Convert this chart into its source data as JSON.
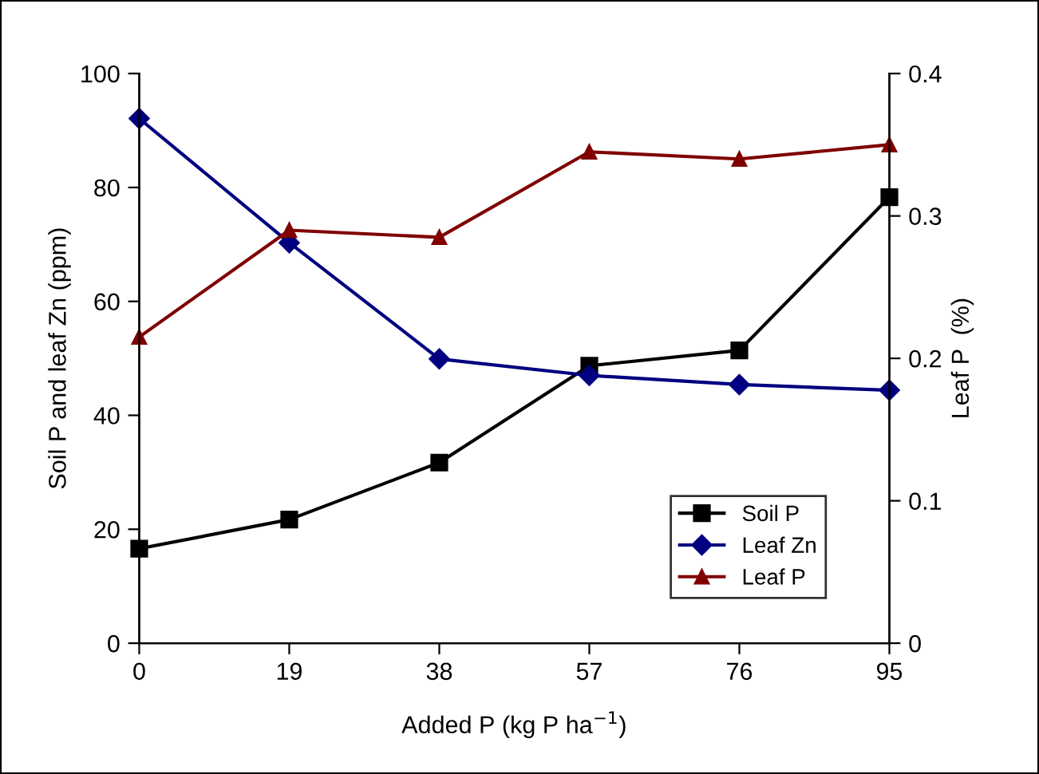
{
  "chart_data": {
    "type": "line",
    "xlabel": "Added P (kg P ha$^{−1}$)",
    "ylabel": "Soil P and leaf Zn (ppm)",
    "y2label": "Leaf P  (%)",
    "categories": [
      "0",
      "19",
      "38",
      "57",
      "76",
      "95"
    ],
    "series": [
      {
        "name": "Soil P",
        "color": "#000000",
        "marker": "square",
        "values": [
          16.6,
          21.7,
          31.7,
          48.7,
          51.4,
          78.3
        ]
      },
      {
        "name": "Leaf Zn",
        "color": "#000080",
        "marker": "diamond",
        "values": [
          92.1,
          70.3,
          49.9,
          47.0,
          45.4,
          44.4
        ]
      },
      {
        "name": "Leaf P",
        "color": "#800000",
        "marker": "triangle",
        "axis": "y2",
        "values": [
          0.215,
          0.29,
          0.285,
          0.345,
          0.34,
          0.35
        ]
      }
    ],
    "ylim": [
      0,
      100
    ],
    "yticks": [
      0,
      20,
      40,
      60,
      80,
      100
    ],
    "y2lim": [
      0,
      0.4
    ],
    "y2ticks": [
      0,
      0.1,
      0.2,
      0.3,
      0.4
    ],
    "grid": false,
    "legend": "bottom right"
  }
}
